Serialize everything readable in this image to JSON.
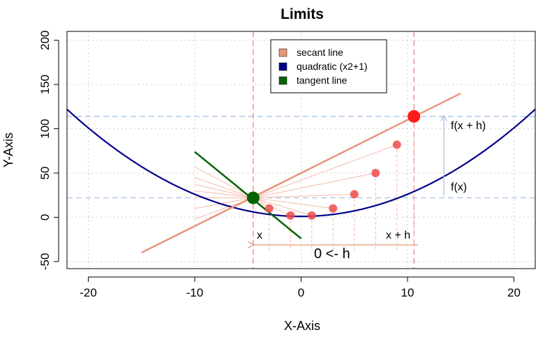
{
  "chart_data": {
    "type": "line",
    "title": "Limits",
    "xlabel": "X-Axis",
    "ylabel": "Y-Axis",
    "xlim": [
      -22,
      22
    ],
    "ylim": [
      -58,
      210
    ],
    "x_ticks": [
      -20,
      -10,
      0,
      10,
      20
    ],
    "y_ticks": [
      -50,
      0,
      50,
      100,
      150,
      200
    ],
    "grid": true,
    "legend_position": "top-center",
    "legend": [
      {
        "label": "secant line",
        "color": "#e8967a"
      },
      {
        "label": "quadratic (x2+1)",
        "color": "#00008b"
      },
      {
        "label": "tangent line",
        "color": "#006400"
      }
    ],
    "series": [
      {
        "name": "quadratic (x2+1)",
        "function": "x^2/4+1",
        "color": "#00008b"
      },
      {
        "name": "secant line",
        "x": [
          -15,
          15
        ],
        "y": [
          -40,
          140
        ],
        "color": "#e8967a"
      },
      {
        "name": "tangent line",
        "x": [
          -10,
          0
        ],
        "y": [
          74,
          -24
        ],
        "color": "#006400"
      }
    ],
    "tangent_point": {
      "x": -4.5,
      "y": 22
    },
    "secant_point": {
      "x": 10.6,
      "y": 114
    },
    "approach_points": [
      {
        "x": -3,
        "y": 10
      },
      {
        "x": -1,
        "y": 2
      },
      {
        "x": 1,
        "y": 2
      },
      {
        "x": 3,
        "y": 10
      },
      {
        "x": 5,
        "y": 26
      },
      {
        "x": 7,
        "y": 50
      },
      {
        "x": 9,
        "y": 82
      }
    ],
    "faint_secant_ends": [
      {
        "x": -10,
        "y": 57
      },
      {
        "x": -10,
        "y": 45
      },
      {
        "x": -10,
        "y": 37
      },
      {
        "x": -10,
        "y": 30
      },
      {
        "x": -10,
        "y": 22
      },
      {
        "x": -10,
        "y": 10
      },
      {
        "x": -10,
        "y": -2
      },
      {
        "x": -10,
        "y": -10
      }
    ],
    "vertical_lines": [
      -4.5,
      10.6
    ],
    "horizontal_lines": [
      22,
      114
    ],
    "annotations": {
      "fx": "f(x)",
      "fxh": "f(x + h)",
      "x": "x",
      "xh": "x + h",
      "limit": "0 <- h"
    }
  }
}
